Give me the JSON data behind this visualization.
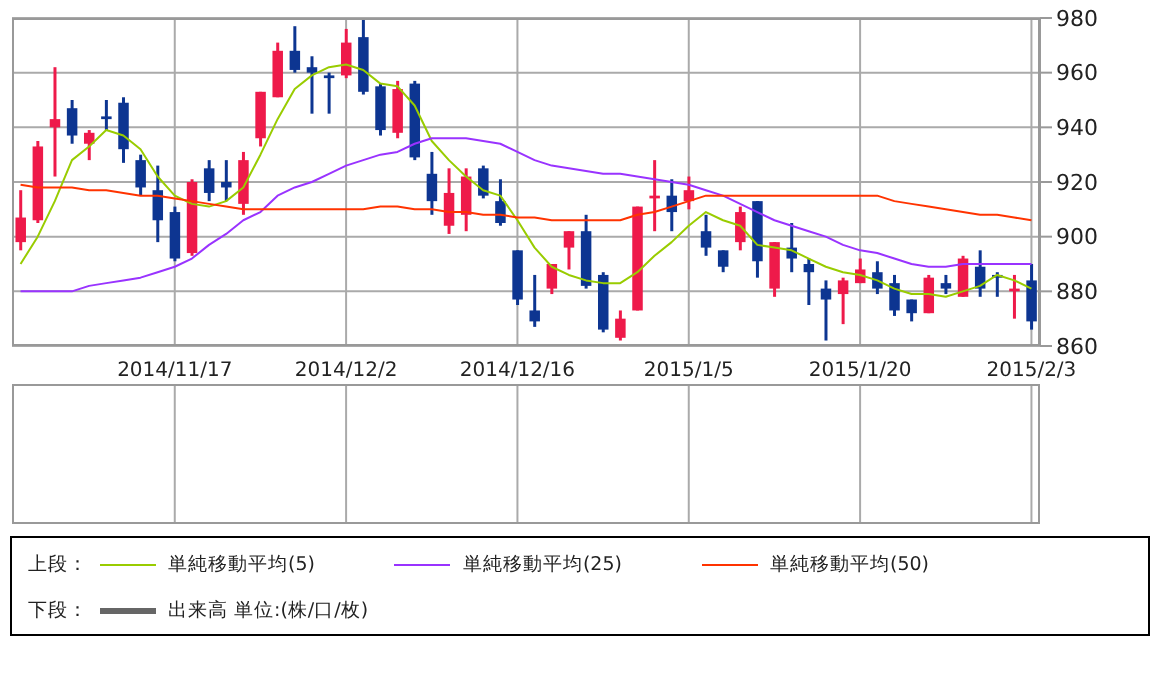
{
  "chart_data": [
    {
      "type": "candlestick",
      "legend_title": "上段：",
      "legend": "bottom",
      "grid": true,
      "categories": [
        null,
        null,
        null,
        null,
        null,
        null,
        null,
        null,
        null,
        "2014/11/17",
        null,
        null,
        null,
        null,
        null,
        null,
        null,
        null,
        null,
        "2014/12/2",
        null,
        null,
        null,
        null,
        null,
        null,
        null,
        null,
        null,
        "2014/12/16",
        null,
        null,
        null,
        null,
        null,
        null,
        null,
        null,
        null,
        "2015/1/5",
        null,
        null,
        null,
        null,
        null,
        null,
        null,
        null,
        null,
        "2015/1/20",
        null,
        null,
        null,
        null,
        null,
        null,
        null,
        null,
        null,
        "2015/2/3"
      ],
      "ylim": [
        860,
        980
      ],
      "yticks": [
        860,
        880,
        900,
        920,
        940,
        960,
        980
      ],
      "ohlc": [
        [
          898,
          917,
          895,
          907
        ],
        [
          906,
          935,
          905,
          933
        ],
        [
          940,
          962,
          922,
          943
        ],
        [
          947,
          950,
          934,
          937
        ],
        [
          934,
          939,
          928,
          938
        ],
        [
          944,
          950,
          939,
          943
        ],
        [
          949,
          951,
          927,
          932
        ],
        [
          928,
          930,
          915,
          918
        ],
        [
          917,
          926,
          898,
          906
        ],
        [
          909,
          911,
          891,
          892
        ],
        [
          894,
          921,
          893,
          920
        ],
        [
          925,
          928,
          913,
          916
        ],
        [
          920,
          928,
          913,
          918
        ],
        [
          912,
          931,
          908,
          928
        ],
        [
          936,
          953,
          933,
          953
        ],
        [
          951,
          971,
          951,
          968
        ],
        [
          968,
          977,
          960,
          961
        ],
        [
          962,
          966,
          945,
          960
        ],
        [
          959,
          960,
          945,
          958
        ],
        [
          959,
          976,
          958,
          971
        ],
        [
          973,
          980,
          952,
          953
        ],
        [
          955,
          956,
          937,
          939
        ],
        [
          938,
          957,
          936,
          954
        ],
        [
          956,
          957,
          928,
          929
        ],
        [
          923,
          931,
          908,
          913
        ],
        [
          904,
          925,
          901,
          916
        ],
        [
          908,
          925,
          902,
          922
        ],
        [
          925,
          926,
          914,
          915
        ],
        [
          913,
          921,
          904,
          905
        ],
        [
          895,
          895,
          875,
          877
        ],
        [
          873,
          886,
          867,
          869
        ],
        [
          881,
          890,
          879,
          890
        ],
        [
          896,
          902,
          888,
          902
        ],
        [
          902,
          908,
          881,
          882
        ],
        [
          886,
          887,
          865,
          866
        ],
        [
          863,
          873,
          862,
          870
        ],
        [
          873,
          911,
          873,
          911
        ],
        [
          914,
          928,
          902,
          915
        ],
        [
          915,
          921,
          902,
          909
        ],
        [
          913,
          922,
          910,
          917
        ],
        [
          902,
          908,
          893,
          896
        ],
        [
          895,
          895,
          887,
          889
        ],
        [
          898,
          911,
          895,
          909
        ],
        [
          913,
          913,
          885,
          891
        ],
        [
          881,
          898,
          878,
          898
        ],
        [
          896,
          905,
          887,
          892
        ],
        [
          890,
          892,
          875,
          887
        ],
        [
          881,
          884,
          862,
          877
        ],
        [
          879,
          885,
          868,
          884
        ],
        [
          883,
          892,
          883,
          888
        ],
        [
          887,
          891,
          879,
          881
        ],
        [
          883,
          886,
          871,
          873
        ],
        [
          877,
          877,
          869,
          872
        ],
        [
          872,
          886,
          872,
          885
        ],
        [
          883,
          886,
          879,
          881
        ],
        [
          878,
          893,
          878,
          892
        ],
        [
          889,
          895,
          878,
          881
        ],
        [
          886,
          887,
          878,
          885
        ],
        [
          880,
          886,
          870,
          881
        ],
        [
          884,
          890,
          866,
          869
        ]
      ],
      "colors": [
        "#ee1a4a",
        "#ee1a4a",
        "#ee1a4a",
        "#0d3591",
        "#ee1a4a",
        "#0d3591",
        "#0d3591",
        "#0d3591",
        "#0d3591",
        "#0d3591",
        "#ee1a4a",
        "#0d3591",
        "#0d3591",
        "#ee1a4a",
        "#ee1a4a",
        "#ee1a4a",
        "#0d3591",
        "#0d3591",
        "#0d3591",
        "#ee1a4a",
        "#0d3591",
        "#0d3591",
        "#ee1a4a",
        "#0d3591",
        "#0d3591",
        "#ee1a4a",
        "#ee1a4a",
        "#0d3591",
        "#0d3591",
        "#0d3591",
        "#0d3591",
        "#ee1a4a",
        "#ee1a4a",
        "#0d3591",
        "#0d3591",
        "#ee1a4a",
        "#ee1a4a",
        "#ee1a4a",
        "#0d3591",
        "#ee1a4a",
        "#0d3591",
        "#0d3591",
        "#ee1a4a",
        "#0d3591",
        "#ee1a4a",
        "#0d3591",
        "#0d3591",
        "#0d3591",
        "#ee1a4a",
        "#ee1a4a",
        "#0d3591",
        "#0d3591",
        "#0d3591",
        "#ee1a4a",
        "#0d3591",
        "#ee1a4a",
        "#0d3591",
        "#0d3591",
        "#ee1a4a",
        "#0d3591"
      ],
      "series": [
        {
          "type": "line",
          "name": "単純移動平均(5)",
          "color": "#99cc00",
          "values": [
            890,
            900,
            913,
            928,
            933,
            939,
            937,
            932,
            922,
            915,
            912,
            911,
            913,
            918,
            930,
            943,
            954,
            959,
            962,
            963,
            961,
            956,
            955,
            948,
            935,
            928,
            922,
            917,
            915,
            906,
            896,
            889,
            886,
            884,
            883,
            883,
            887,
            893,
            898,
            904,
            909,
            906,
            904,
            897,
            896,
            895,
            892,
            889,
            887,
            886,
            884,
            881,
            879,
            879,
            878,
            880,
            882,
            886,
            884,
            881
          ]
        },
        {
          "type": "line",
          "name": "単純移動平均(25)",
          "color": "#9933ff",
          "values": [
            880,
            880,
            880,
            880,
            882,
            883,
            884,
            885,
            887,
            889,
            892,
            897,
            901,
            906,
            909,
            915,
            918,
            920,
            923,
            926,
            928,
            930,
            931,
            934,
            936,
            936,
            936,
            935,
            934,
            931,
            928,
            926,
            925,
            924,
            923,
            923,
            922,
            921,
            920,
            919,
            917,
            915,
            912,
            909,
            906,
            904,
            902,
            900,
            897,
            895,
            894,
            892,
            890,
            889,
            889,
            890,
            890,
            890,
            890,
            890
          ]
        },
        {
          "type": "line",
          "name": "単純移動平均(50)",
          "color": "#ff3300",
          "values": [
            919,
            918,
            918,
            918,
            917,
            917,
            916,
            915,
            915,
            914,
            913,
            912,
            911,
            910,
            910,
            910,
            910,
            910,
            910,
            910,
            910,
            911,
            911,
            910,
            910,
            909,
            909,
            908,
            908,
            907,
            907,
            906,
            906,
            906,
            906,
            906,
            908,
            909,
            911,
            913,
            915,
            915,
            915,
            915,
            915,
            915,
            915,
            915,
            915,
            915,
            915,
            913,
            912,
            911,
            910,
            909,
            908,
            908,
            907,
            906
          ]
        }
      ]
    },
    {
      "type": "other",
      "legend_title": "下段：",
      "legend": "bottom",
      "series": [
        {
          "type": "bar",
          "name": "出来高 単位:(株/口/枚)",
          "color": "#666666"
        }
      ]
    }
  ]
}
